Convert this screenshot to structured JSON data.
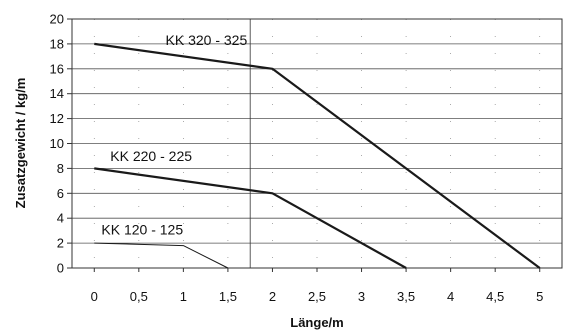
{
  "chart_data": {
    "type": "line",
    "xlabel": "Länge/m",
    "ylabel": "Zusatzgewicht / kg/m",
    "xlim": [
      -0.25,
      5.25
    ],
    "ylim": [
      0,
      20
    ],
    "x_ticks": [
      "0",
      "0,5",
      "1",
      "1,5",
      "2",
      "2,5",
      "3",
      "3,5",
      "4",
      "4,5",
      "5"
    ],
    "x_tick_values": [
      0,
      0.5,
      1,
      1.5,
      2,
      2.5,
      3,
      3.5,
      4,
      4.5,
      5
    ],
    "y_ticks": [
      "0",
      "2",
      "4",
      "6",
      "8",
      "10",
      "12",
      "14",
      "16",
      "18",
      "20"
    ],
    "y_tick_values": [
      0,
      2,
      4,
      6,
      8,
      10,
      12,
      14,
      16,
      18,
      20
    ],
    "grid": "horizontal major lines, dotted minor",
    "reference_line_x": 1.75,
    "series": [
      {
        "name": "KK 320 - 325",
        "x": [
          0,
          2,
          5
        ],
        "y": [
          18,
          16,
          0
        ],
        "stroke": "#1a1a1a",
        "width": "thick"
      },
      {
        "name": "KK 220 - 225",
        "x": [
          0,
          2,
          3.5
        ],
        "y": [
          8,
          6,
          0
        ],
        "stroke": "#1a1a1a",
        "width": "thick"
      },
      {
        "name": "KK 120 - 125",
        "x": [
          0,
          1,
          1.5
        ],
        "y": [
          2,
          1.8,
          0
        ],
        "stroke": "#1a1a1a",
        "width": "thin"
      }
    ]
  }
}
